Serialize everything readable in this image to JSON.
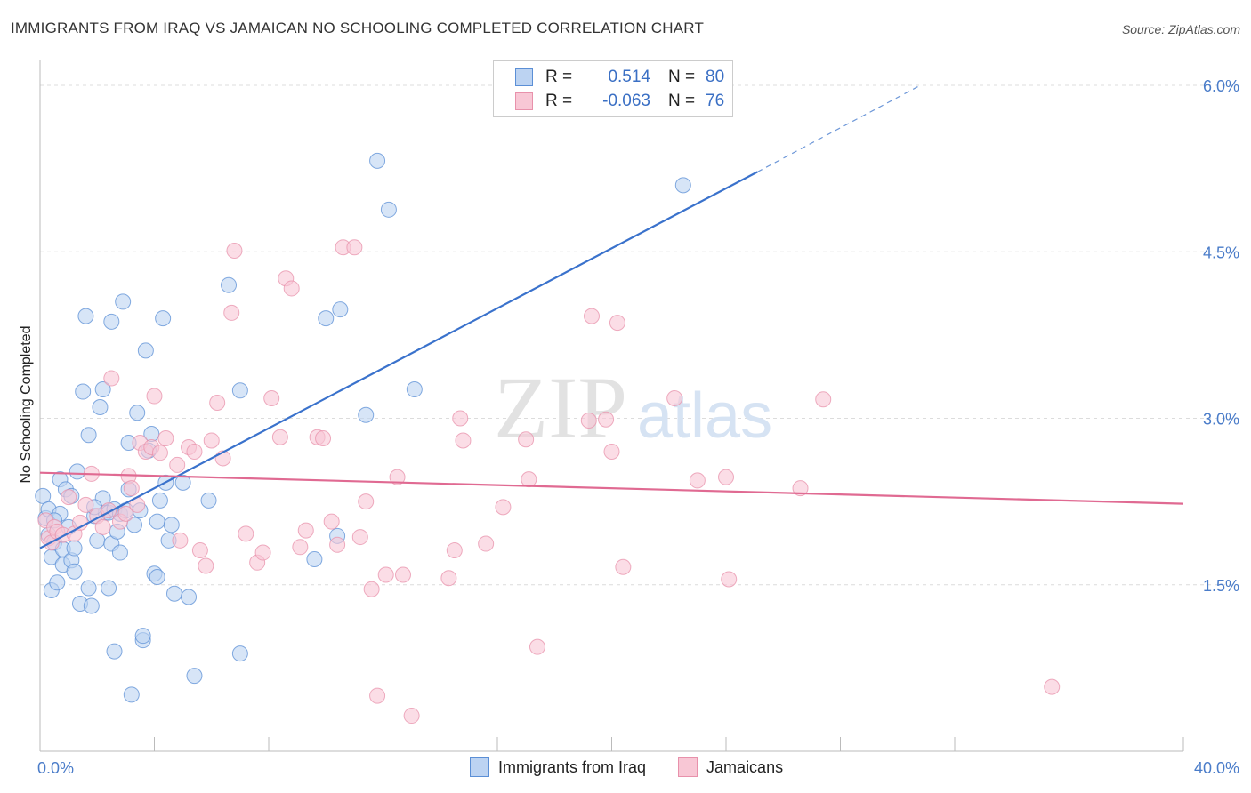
{
  "title": "IMMIGRANTS FROM IRAQ VS JAMAICAN NO SCHOOLING COMPLETED CORRELATION CHART",
  "source": "Source: ZipAtlas.com",
  "watermark": {
    "zip": "ZIP",
    "atlas": "atlas"
  },
  "legend_top": {
    "rows": [
      {
        "r_label": "R =",
        "r_value": "0.514",
        "n_label": "N =",
        "n_value": "80",
        "color": "#5b8fd6",
        "fill": "#bcd3f2"
      },
      {
        "r_label": "R =",
        "r_value": "-0.063",
        "n_label": "N =",
        "n_value": "76",
        "color": "#e891ab",
        "fill": "#f8c7d5"
      }
    ]
  },
  "legend_bottom": [
    {
      "label": "Immigrants from Iraq",
      "color": "#5b8fd6",
      "fill": "#bcd3f2"
    },
    {
      "label": "Jamaicans",
      "color": "#e891ab",
      "fill": "#f8c7d5"
    }
  ],
  "chart_data": {
    "type": "scatter",
    "title": "IMMIGRANTS FROM IRAQ VS JAMAICAN NO SCHOOLING COMPLETED CORRELATION CHART",
    "xlabel": "",
    "ylabel": "No Schooling Completed",
    "xlim": [
      0,
      40
    ],
    "ylim": [
      0,
      6.2
    ],
    "x_tick_labels": [
      "0.0%",
      "40.0%"
    ],
    "y_ticks": [
      1.5,
      3.0,
      4.5,
      6.0
    ],
    "y_tick_labels": [
      "1.5%",
      "3.0%",
      "4.5%",
      "6.0%"
    ],
    "grid": true,
    "legend_position": "top-center",
    "series": [
      {
        "name": "Immigrants from Iraq",
        "color": "#5b8fd6",
        "fill": "#bcd3f2",
        "trend": {
          "x0": 0,
          "y0": 1.83,
          "x1": 25.1,
          "y1": 5.22,
          "dash_x1": 30.8,
          "dash_y1": 6.0
        },
        "points": [
          [
            0.1,
            2.3
          ],
          [
            0.2,
            2.1
          ],
          [
            0.3,
            2.18
          ],
          [
            0.3,
            1.95
          ],
          [
            0.4,
            1.75
          ],
          [
            0.5,
            1.88
          ],
          [
            0.4,
            1.45
          ],
          [
            0.6,
            1.52
          ],
          [
            0.7,
            2.45
          ],
          [
            0.7,
            2.14
          ],
          [
            0.8,
            1.82
          ],
          [
            0.8,
            1.68
          ],
          [
            0.9,
            2.36
          ],
          [
            1.0,
            2.02
          ],
          [
            1.1,
            1.72
          ],
          [
            1.1,
            2.3
          ],
          [
            1.2,
            1.62
          ],
          [
            1.2,
            1.83
          ],
          [
            1.3,
            2.52
          ],
          [
            1.4,
            1.33
          ],
          [
            1.5,
            3.24
          ],
          [
            1.6,
            3.92
          ],
          [
            1.7,
            1.47
          ],
          [
            1.7,
            2.85
          ],
          [
            1.8,
            1.31
          ],
          [
            1.9,
            2.12
          ],
          [
            2.0,
            1.9
          ],
          [
            2.1,
            3.1
          ],
          [
            2.2,
            3.26
          ],
          [
            2.2,
            2.28
          ],
          [
            2.3,
            2.15
          ],
          [
            2.4,
            1.47
          ],
          [
            2.4,
            2.15
          ],
          [
            2.5,
            3.87
          ],
          [
            2.5,
            1.87
          ],
          [
            2.6,
            2.18
          ],
          [
            2.6,
            0.9
          ],
          [
            2.7,
            1.98
          ],
          [
            2.8,
            2.14
          ],
          [
            2.8,
            1.79
          ],
          [
            2.9,
            4.05
          ],
          [
            3.0,
            2.17
          ],
          [
            3.1,
            2.78
          ],
          [
            3.1,
            2.36
          ],
          [
            3.2,
            0.51
          ],
          [
            3.3,
            2.04
          ],
          [
            3.4,
            3.05
          ],
          [
            3.5,
            2.17
          ],
          [
            3.6,
            1.0
          ],
          [
            3.6,
            1.04
          ],
          [
            3.7,
            3.61
          ],
          [
            3.8,
            2.71
          ],
          [
            3.9,
            2.86
          ],
          [
            4.0,
            1.6
          ],
          [
            4.1,
            2.07
          ],
          [
            4.1,
            1.57
          ],
          [
            4.2,
            2.26
          ],
          [
            4.3,
            3.9
          ],
          [
            4.4,
            2.42
          ],
          [
            4.5,
            1.9
          ],
          [
            4.6,
            2.04
          ],
          [
            4.7,
            1.42
          ],
          [
            5.0,
            2.42
          ],
          [
            5.2,
            1.39
          ],
          [
            5.4,
            0.68
          ],
          [
            5.9,
            2.26
          ],
          [
            6.6,
            4.2
          ],
          [
            7.0,
            3.25
          ],
          [
            7.0,
            0.88
          ],
          [
            9.6,
            1.73
          ],
          [
            10.0,
            3.9
          ],
          [
            10.4,
            1.94
          ],
          [
            10.5,
            3.98
          ],
          [
            11.4,
            3.03
          ],
          [
            11.8,
            5.32
          ],
          [
            12.2,
            4.88
          ],
          [
            13.1,
            3.26
          ],
          [
            22.5,
            5.1
          ],
          [
            0.5,
            2.08
          ],
          [
            1.9,
            2.2
          ]
        ]
      },
      {
        "name": "Jamaicans",
        "color": "#e891ab",
        "fill": "#f8c7d5",
        "trend": {
          "x0": 0,
          "y0": 2.51,
          "x1": 40,
          "y1": 2.23
        },
        "points": [
          [
            0.2,
            2.08
          ],
          [
            0.3,
            1.92
          ],
          [
            0.4,
            1.88
          ],
          [
            0.5,
            2.02
          ],
          [
            0.6,
            1.98
          ],
          [
            0.8,
            1.95
          ],
          [
            1.0,
            2.29
          ],
          [
            1.2,
            1.96
          ],
          [
            1.4,
            2.06
          ],
          [
            1.6,
            2.22
          ],
          [
            1.8,
            2.5
          ],
          [
            2.0,
            2.12
          ],
          [
            2.2,
            2.02
          ],
          [
            2.4,
            2.17
          ],
          [
            2.5,
            3.36
          ],
          [
            2.8,
            2.07
          ],
          [
            3.0,
            2.14
          ],
          [
            3.1,
            2.48
          ],
          [
            3.2,
            2.37
          ],
          [
            3.4,
            2.22
          ],
          [
            3.5,
            2.78
          ],
          [
            3.7,
            2.7
          ],
          [
            3.9,
            2.74
          ],
          [
            4.0,
            3.2
          ],
          [
            4.2,
            2.69
          ],
          [
            4.4,
            2.82
          ],
          [
            4.8,
            2.58
          ],
          [
            4.9,
            1.9
          ],
          [
            5.2,
            2.74
          ],
          [
            5.4,
            2.7
          ],
          [
            5.6,
            1.81
          ],
          [
            5.8,
            1.67
          ],
          [
            6.0,
            2.8
          ],
          [
            6.2,
            3.14
          ],
          [
            6.4,
            2.64
          ],
          [
            6.7,
            3.95
          ],
          [
            6.8,
            4.51
          ],
          [
            7.2,
            1.96
          ],
          [
            7.6,
            1.7
          ],
          [
            7.8,
            1.79
          ],
          [
            8.1,
            3.18
          ],
          [
            8.4,
            2.83
          ],
          [
            8.6,
            4.26
          ],
          [
            8.8,
            4.17
          ],
          [
            9.1,
            1.84
          ],
          [
            9.3,
            1.99
          ],
          [
            9.7,
            2.83
          ],
          [
            9.9,
            2.82
          ],
          [
            10.2,
            2.07
          ],
          [
            10.4,
            1.86
          ],
          [
            10.6,
            4.54
          ],
          [
            11.0,
            4.54
          ],
          [
            11.2,
            1.93
          ],
          [
            11.4,
            2.25
          ],
          [
            11.6,
            1.46
          ],
          [
            11.8,
            0.5
          ],
          [
            12.1,
            1.59
          ],
          [
            12.5,
            2.47
          ],
          [
            12.7,
            1.59
          ],
          [
            13.0,
            0.32
          ],
          [
            14.3,
            1.56
          ],
          [
            14.5,
            1.81
          ],
          [
            14.7,
            3.0
          ],
          [
            14.8,
            2.8
          ],
          [
            15.6,
            1.87
          ],
          [
            16.2,
            2.2
          ],
          [
            17.0,
            2.81
          ],
          [
            17.1,
            2.45
          ],
          [
            17.4,
            0.94
          ],
          [
            19.2,
            2.98
          ],
          [
            19.3,
            3.92
          ],
          [
            19.8,
            2.99
          ],
          [
            20.0,
            2.7
          ],
          [
            20.2,
            3.86
          ],
          [
            20.4,
            1.66
          ],
          [
            22.2,
            3.18
          ]
        ],
        "extra_points": [
          [
            23.0,
            2.44
          ],
          [
            24.0,
            2.47
          ],
          [
            24.1,
            1.55
          ],
          [
            26.6,
            2.37
          ],
          [
            27.4,
            3.17
          ],
          [
            35.4,
            0.58
          ]
        ]
      }
    ]
  }
}
